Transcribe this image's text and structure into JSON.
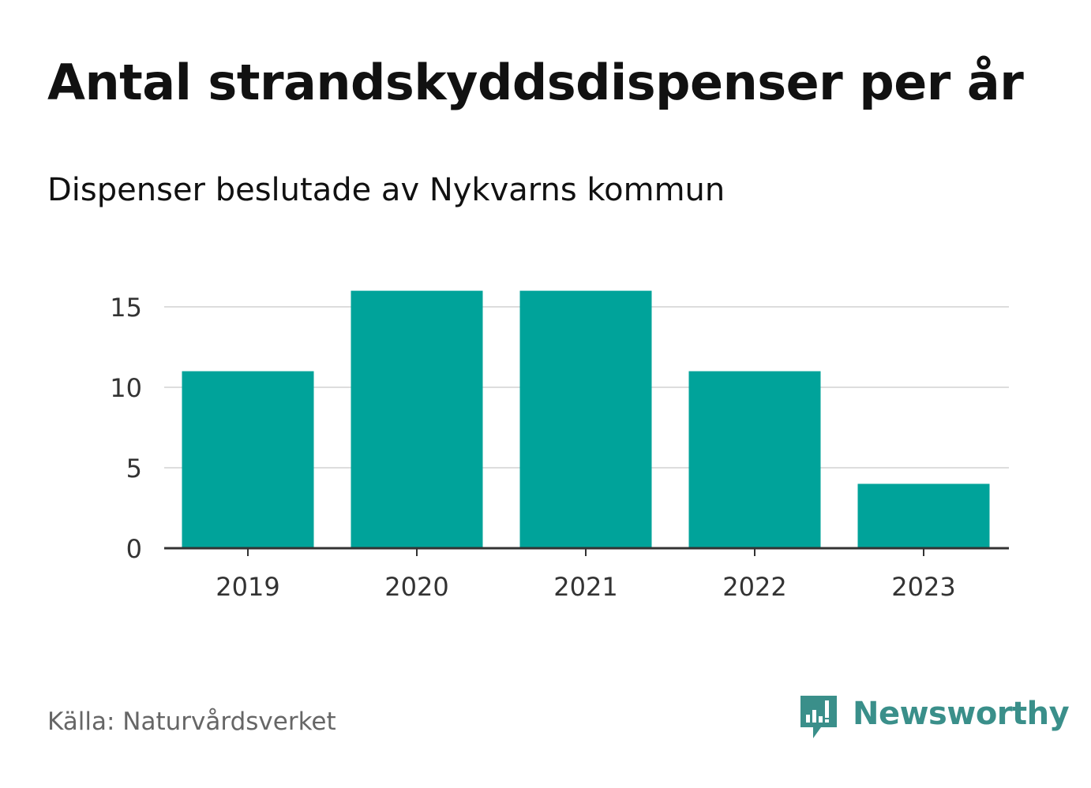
{
  "chart_data": {
    "type": "bar",
    "title": "Antal strandskyddsdispenser per år",
    "subtitle": "Dispenser beslutade av Nykvarns kommun",
    "categories": [
      "2019",
      "2020",
      "2021",
      "2022",
      "2023"
    ],
    "values": [
      11,
      16,
      16,
      11,
      4
    ],
    "yticks": [
      0,
      5,
      10,
      15
    ],
    "ylim": [
      0,
      16
    ],
    "xlabel": "",
    "ylabel": "",
    "grid": true,
    "bar_color": "#00a39a",
    "grid_color": "#dddddd",
    "axis_color": "#333333"
  },
  "footer": {
    "source": "Källa: Naturvårdsverket",
    "brand": "Newsworthy",
    "brand_color": "#3a8f8a",
    "brand_icon": "newsworthy-logo-icon"
  }
}
